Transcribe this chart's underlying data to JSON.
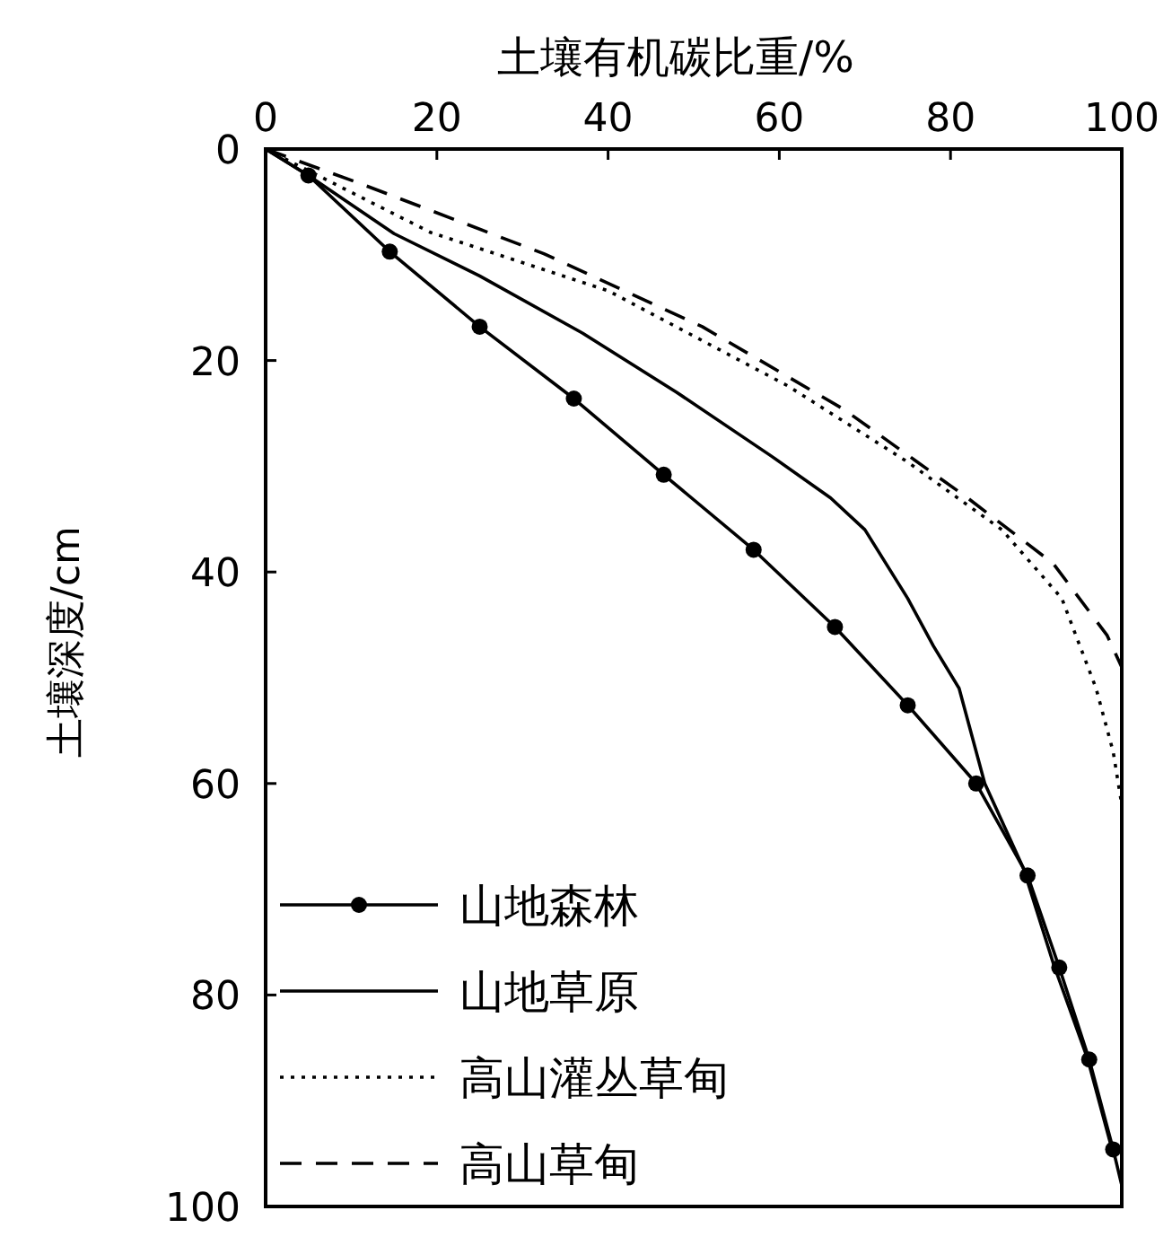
{
  "chart_data": {
    "type": "line",
    "xlabel": "土壤有机碳比重/%",
    "ylabel": "土壤深度/cm",
    "xlim": [
      0,
      100
    ],
    "xticks": [
      0,
      20,
      40,
      60,
      80,
      100
    ],
    "ylim": [
      100,
      0
    ],
    "yticks": [
      0,
      20,
      40,
      60,
      80,
      100
    ],
    "grid": false,
    "legend": "bottom left",
    "series": [
      {
        "name": "山地森林",
        "color": "#000000",
        "marker": "circle",
        "line_style": "solid",
        "x": [
          0,
          5,
          14.5,
          25,
          36,
          46.5,
          57,
          66.5,
          75,
          83,
          89,
          92.7,
          96.2,
          99,
          100
        ],
        "values": [
          0,
          2.5,
          9.7,
          16.8,
          23.6,
          30.8,
          37.9,
          45.2,
          52.6,
          60,
          68.7,
          77.4,
          86.1,
          94.6,
          98
        ]
      },
      {
        "name": "山地草原",
        "color": "#000000",
        "marker": "none",
        "line_style": "solid",
        "x": [
          0,
          5,
          15,
          25,
          37,
          48,
          59,
          66,
          70,
          75,
          78,
          81,
          84,
          88.5,
          92,
          96,
          99
        ],
        "values": [
          0,
          2.5,
          8,
          12,
          17.4,
          23,
          29,
          33,
          36,
          42.5,
          47,
          51,
          60,
          68,
          77,
          86,
          95
        ]
      },
      {
        "name": "高山灌丛草甸",
        "color": "#000000",
        "marker": "none",
        "line_style": "dotted",
        "x": [
          0,
          19.3,
          40,
          61,
          75,
          86,
          93,
          97,
          99,
          100
        ],
        "values": [
          0,
          7.9,
          13.4,
          22.4,
          29.6,
          36,
          42.5,
          51,
          57,
          62
        ]
      },
      {
        "name": "高山草甸",
        "color": "#000000",
        "marker": "none",
        "line_style": "dashed",
        "x": [
          0,
          11.5,
          32.5,
          51,
          67.5,
          82,
          92,
          98.3,
          100
        ],
        "values": [
          0,
          3.4,
          9.9,
          16.8,
          24.6,
          33,
          39.2,
          46,
          49
        ]
      }
    ]
  }
}
